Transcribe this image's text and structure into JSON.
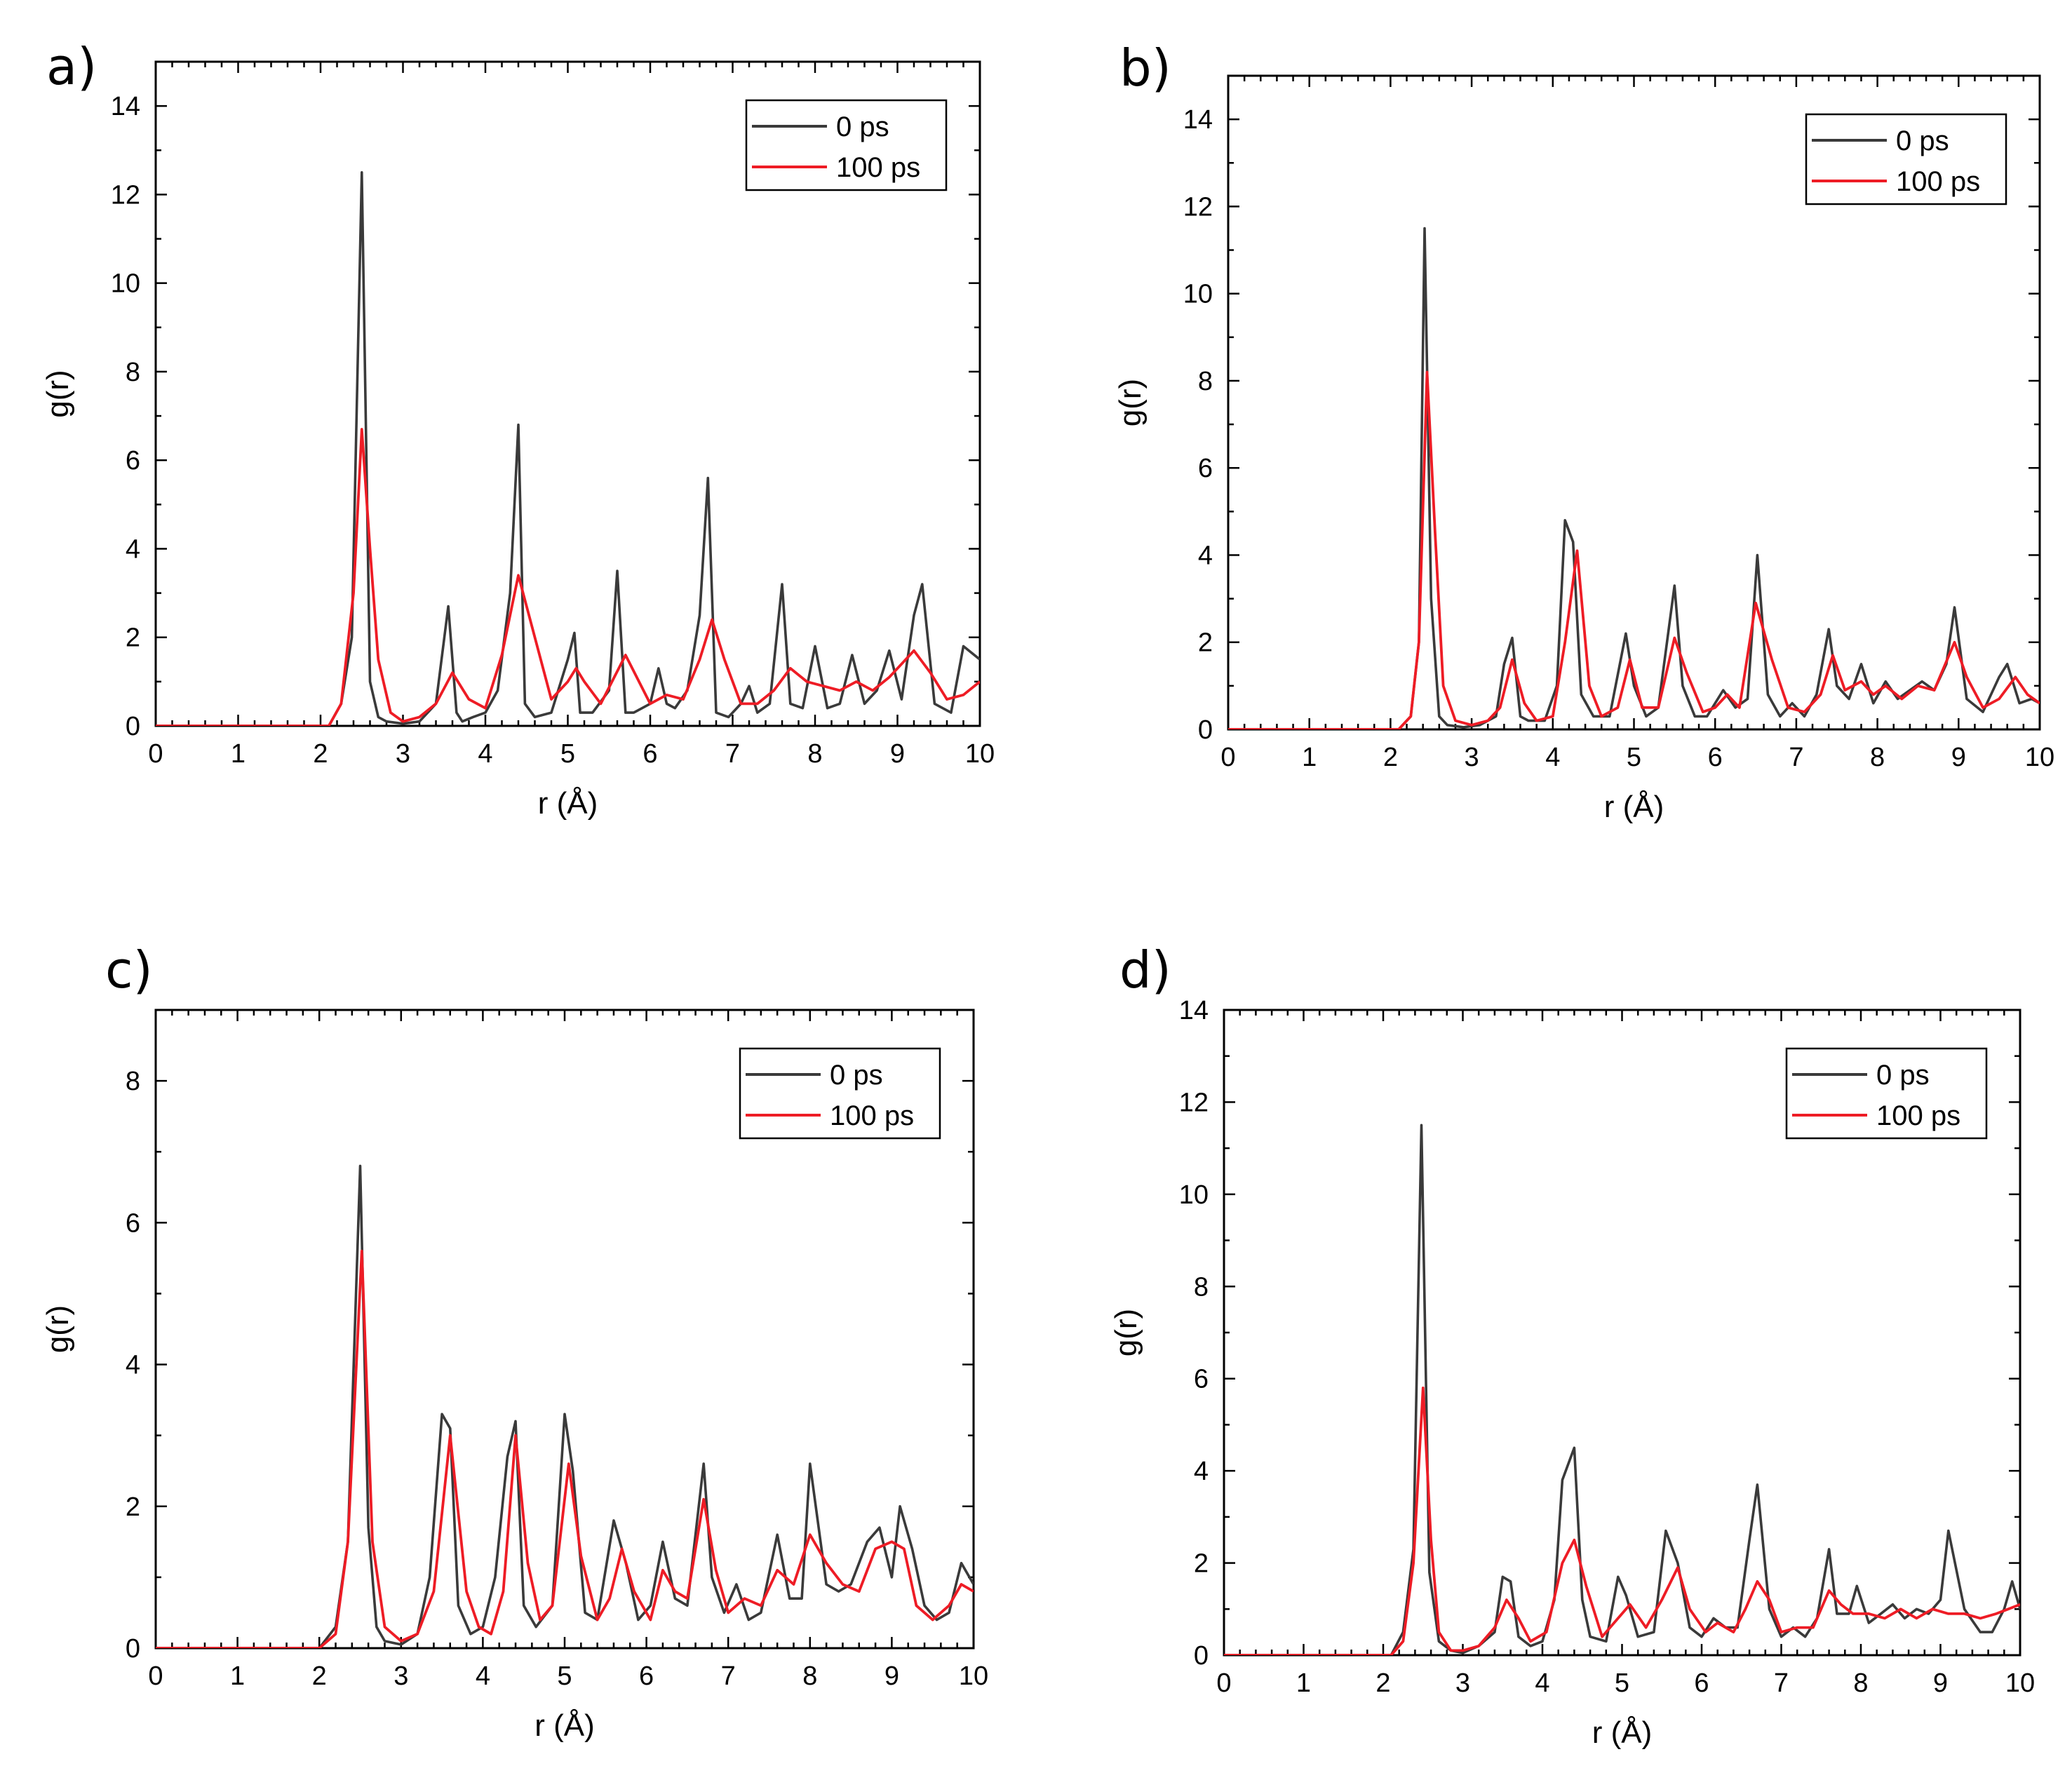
{
  "figure": {
    "colors": {
      "series_0ps": "#3a3a3a",
      "series_100ps": "#ee1c25",
      "axis": "#000000"
    }
  },
  "chart_data": [
    {
      "panel": "a)",
      "type": "line",
      "xlabel": "r (Å)",
      "ylabel": "g(r)",
      "xlim": [
        0,
        10
      ],
      "ylim": [
        0,
        15
      ],
      "xticks": [
        0,
        1,
        2,
        3,
        4,
        5,
        6,
        7,
        8,
        9,
        10
      ],
      "yticks": [
        0,
        2,
        4,
        6,
        8,
        10,
        12,
        14
      ],
      "legend": "top-right",
      "series": [
        {
          "name": "0 ps",
          "x": [
            0,
            2.1,
            2.25,
            2.38,
            2.5,
            2.6,
            2.7,
            2.8,
            3.0,
            3.2,
            3.4,
            3.55,
            3.65,
            3.72,
            3.85,
            4.0,
            4.15,
            4.3,
            4.4,
            4.48,
            4.6,
            4.8,
            5.0,
            5.08,
            5.15,
            5.3,
            5.5,
            5.6,
            5.7,
            5.8,
            6.0,
            6.1,
            6.2,
            6.3,
            6.45,
            6.6,
            6.7,
            6.8,
            6.95,
            7.1,
            7.2,
            7.3,
            7.45,
            7.6,
            7.7,
            7.85,
            8.0,
            8.15,
            8.3,
            8.45,
            8.6,
            8.75,
            8.9,
            9.05,
            9.2,
            9.3,
            9.45,
            9.65,
            9.8,
            10.0
          ],
          "y": [
            0,
            0,
            0.5,
            2.0,
            12.5,
            1.0,
            0.2,
            0.1,
            0.05,
            0.1,
            0.5,
            2.7,
            0.3,
            0.1,
            0.2,
            0.3,
            0.8,
            3.0,
            6.8,
            0.5,
            0.2,
            0.3,
            1.5,
            2.1,
            0.3,
            0.3,
            0.8,
            3.5,
            0.3,
            0.3,
            0.5,
            1.3,
            0.5,
            0.4,
            0.8,
            2.5,
            5.6,
            0.3,
            0.2,
            0.5,
            0.9,
            0.3,
            0.5,
            3.2,
            0.5,
            0.4,
            1.8,
            0.4,
            0.5,
            1.6,
            0.5,
            0.8,
            1.7,
            0.6,
            2.5,
            3.2,
            0.5,
            0.3,
            1.8,
            1.5
          ]
        },
        {
          "name": "100 ps",
          "x": [
            0,
            2.1,
            2.25,
            2.4,
            2.5,
            2.6,
            2.7,
            2.85,
            3.0,
            3.2,
            3.4,
            3.6,
            3.8,
            4.0,
            4.2,
            4.4,
            4.6,
            4.8,
            5.0,
            5.1,
            5.2,
            5.4,
            5.7,
            6.0,
            6.2,
            6.4,
            6.6,
            6.75,
            6.9,
            7.1,
            7.3,
            7.5,
            7.7,
            7.9,
            8.1,
            8.3,
            8.5,
            8.7,
            8.9,
            9.1,
            9.2,
            9.4,
            9.6,
            9.8,
            10.0
          ],
          "y": [
            0,
            0,
            0.5,
            3.0,
            6.7,
            4.0,
            1.5,
            0.3,
            0.1,
            0.2,
            0.5,
            1.2,
            0.6,
            0.4,
            1.6,
            3.4,
            2.0,
            0.6,
            1.0,
            1.3,
            1.0,
            0.5,
            1.6,
            0.5,
            0.7,
            0.6,
            1.5,
            2.4,
            1.5,
            0.5,
            0.5,
            0.8,
            1.3,
            1.0,
            0.9,
            0.8,
            1.0,
            0.8,
            1.1,
            1.5,
            1.7,
            1.2,
            0.6,
            0.7,
            1.0
          ]
        }
      ]
    },
    {
      "panel": "b)",
      "type": "line",
      "xlabel": "r (Å)",
      "ylabel": "g(r)",
      "xlim": [
        0,
        10
      ],
      "ylim": [
        0,
        15
      ],
      "xticks": [
        0,
        1,
        2,
        3,
        4,
        5,
        6,
        7,
        8,
        9,
        10
      ],
      "yticks": [
        0,
        2,
        4,
        6,
        8,
        10,
        12,
        14
      ],
      "legend": "top-right",
      "series": [
        {
          "name": "0 ps",
          "x": [
            0,
            2.1,
            2.25,
            2.35,
            2.42,
            2.5,
            2.6,
            2.7,
            2.9,
            3.1,
            3.3,
            3.4,
            3.5,
            3.6,
            3.7,
            3.9,
            4.05,
            4.15,
            4.25,
            4.35,
            4.5,
            4.7,
            4.9,
            5.0,
            5.15,
            5.3,
            5.5,
            5.6,
            5.75,
            5.9,
            6.1,
            6.25,
            6.4,
            6.52,
            6.65,
            6.8,
            6.95,
            7.1,
            7.25,
            7.4,
            7.5,
            7.65,
            7.8,
            7.95,
            8.1,
            8.25,
            8.4,
            8.55,
            8.7,
            8.85,
            8.95,
            9.1,
            9.3,
            9.5,
            9.6,
            9.75,
            9.9,
            10.0
          ],
          "y": [
            0,
            0,
            0.3,
            2.0,
            11.5,
            3.0,
            0.3,
            0.1,
            0.05,
            0.1,
            0.3,
            1.5,
            2.1,
            0.3,
            0.2,
            0.2,
            1.0,
            4.8,
            4.3,
            0.8,
            0.3,
            0.3,
            2.2,
            1.0,
            0.3,
            0.5,
            3.3,
            1.0,
            0.3,
            0.3,
            0.9,
            0.5,
            0.7,
            4.0,
            0.8,
            0.3,
            0.6,
            0.3,
            0.8,
            2.3,
            1.0,
            0.7,
            1.5,
            0.6,
            1.1,
            0.7,
            0.9,
            1.1,
            0.9,
            1.5,
            2.8,
            0.7,
            0.4,
            1.2,
            1.5,
            0.6,
            0.7,
            0.6
          ]
        },
        {
          "name": "100 ps",
          "x": [
            0,
            2.1,
            2.25,
            2.35,
            2.45,
            2.55,
            2.65,
            2.8,
            3.0,
            3.2,
            3.35,
            3.5,
            3.65,
            3.8,
            4.0,
            4.15,
            4.3,
            4.45,
            4.6,
            4.8,
            4.95,
            5.1,
            5.3,
            5.5,
            5.65,
            5.85,
            6.0,
            6.15,
            6.3,
            6.5,
            6.7,
            6.9,
            7.1,
            7.3,
            7.45,
            7.6,
            7.8,
            7.95,
            8.1,
            8.3,
            8.5,
            8.7,
            8.95,
            9.1,
            9.3,
            9.5,
            9.7,
            9.85,
            10.0
          ],
          "y": [
            0,
            0,
            0.3,
            2.0,
            8.2,
            4.5,
            1.0,
            0.2,
            0.1,
            0.2,
            0.5,
            1.6,
            0.6,
            0.2,
            0.3,
            2.0,
            4.1,
            1.0,
            0.3,
            0.5,
            1.6,
            0.5,
            0.5,
            2.1,
            1.3,
            0.4,
            0.5,
            0.8,
            0.5,
            2.9,
            1.6,
            0.5,
            0.4,
            0.8,
            1.7,
            0.9,
            1.1,
            0.8,
            1.0,
            0.7,
            1.0,
            0.9,
            2.0,
            1.2,
            0.5,
            0.7,
            1.2,
            0.8,
            0.6
          ]
        }
      ]
    },
    {
      "panel": "c)",
      "type": "line",
      "xlabel": "r (Å)",
      "ylabel": "g(r)",
      "xlim": [
        0,
        10
      ],
      "ylim": [
        0,
        9
      ],
      "xticks": [
        0,
        1,
        2,
        3,
        4,
        5,
        6,
        7,
        8,
        9,
        10
      ],
      "yticks": [
        0,
        2,
        4,
        6,
        8
      ],
      "legend": "top-right",
      "series": [
        {
          "name": "0 ps",
          "x": [
            0,
            2.0,
            2.2,
            2.35,
            2.5,
            2.6,
            2.7,
            2.8,
            3.0,
            3.2,
            3.35,
            3.5,
            3.6,
            3.7,
            3.85,
            4.0,
            4.15,
            4.3,
            4.4,
            4.5,
            4.65,
            4.85,
            5.0,
            5.1,
            5.25,
            5.4,
            5.6,
            5.75,
            5.9,
            6.05,
            6.2,
            6.35,
            6.5,
            6.7,
            6.8,
            6.95,
            7.1,
            7.25,
            7.4,
            7.6,
            7.75,
            7.9,
            8.0,
            8.2,
            8.35,
            8.5,
            8.7,
            8.85,
            9.0,
            9.1,
            9.25,
            9.4,
            9.55,
            9.7,
            9.85,
            10.0
          ],
          "y": [
            0,
            0,
            0.3,
            1.5,
            6.8,
            1.7,
            0.3,
            0.1,
            0.05,
            0.2,
            1.0,
            3.3,
            3.1,
            0.6,
            0.2,
            0.3,
            1.0,
            2.7,
            3.2,
            0.6,
            0.3,
            0.6,
            3.3,
            2.5,
            0.5,
            0.4,
            1.8,
            1.2,
            0.4,
            0.6,
            1.5,
            0.7,
            0.6,
            2.6,
            1.0,
            0.5,
            0.9,
            0.4,
            0.5,
            1.6,
            0.7,
            0.7,
            2.6,
            0.9,
            0.8,
            0.9,
            1.5,
            1.7,
            1.0,
            2.0,
            1.4,
            0.6,
            0.4,
            0.5,
            1.2,
            0.9
          ]
        },
        {
          "name": "100 ps",
          "x": [
            0,
            2.0,
            2.2,
            2.35,
            2.52,
            2.65,
            2.8,
            3.0,
            3.2,
            3.4,
            3.6,
            3.8,
            3.95,
            4.1,
            4.25,
            4.4,
            4.55,
            4.7,
            4.85,
            5.05,
            5.2,
            5.4,
            5.55,
            5.7,
            5.85,
            6.05,
            6.2,
            6.35,
            6.5,
            6.7,
            6.85,
            7.0,
            7.2,
            7.4,
            7.6,
            7.8,
            8.0,
            8.2,
            8.4,
            8.6,
            8.8,
            9.0,
            9.15,
            9.3,
            9.5,
            9.7,
            9.85,
            10.0
          ],
          "y": [
            0,
            0,
            0.2,
            1.5,
            5.6,
            1.5,
            0.3,
            0.1,
            0.2,
            0.8,
            3.0,
            0.8,
            0.3,
            0.2,
            0.8,
            3.0,
            1.2,
            0.4,
            0.6,
            2.6,
            1.3,
            0.4,
            0.7,
            1.4,
            0.8,
            0.4,
            1.1,
            0.8,
            0.7,
            2.1,
            1.1,
            0.5,
            0.7,
            0.6,
            1.1,
            0.9,
            1.6,
            1.2,
            0.9,
            0.8,
            1.4,
            1.5,
            1.4,
            0.6,
            0.4,
            0.6,
            0.9,
            0.8
          ]
        }
      ]
    },
    {
      "panel": "d)",
      "type": "line",
      "xlabel": "r (Å)",
      "ylabel": "g(r)",
      "xlim": [
        0,
        10
      ],
      "ylim": [
        0,
        14
      ],
      "xticks": [
        0,
        1,
        2,
        3,
        4,
        5,
        6,
        7,
        8,
        9,
        10
      ],
      "yticks": [
        0,
        2,
        4,
        6,
        8,
        10,
        12,
        14
      ],
      "legend": "top-right",
      "series": [
        {
          "name": "0 ps",
          "x": [
            0,
            2.1,
            2.25,
            2.38,
            2.48,
            2.58,
            2.7,
            2.85,
            3.0,
            3.2,
            3.4,
            3.5,
            3.6,
            3.7,
            3.85,
            4.0,
            4.15,
            4.25,
            4.4,
            4.5,
            4.6,
            4.8,
            4.95,
            5.05,
            5.2,
            5.4,
            5.55,
            5.7,
            5.85,
            6.0,
            6.15,
            6.3,
            6.45,
            6.6,
            6.7,
            6.85,
            7.0,
            7.15,
            7.3,
            7.45,
            7.6,
            7.7,
            7.85,
            7.95,
            8.1,
            8.25,
            8.4,
            8.55,
            8.7,
            8.85,
            9.0,
            9.1,
            9.3,
            9.5,
            9.65,
            9.8,
            9.9,
            10.0
          ],
          "y": [
            0,
            0,
            0.5,
            2.3,
            11.5,
            1.8,
            0.3,
            0.1,
            0.05,
            0.2,
            0.5,
            1.7,
            1.6,
            0.4,
            0.2,
            0.3,
            1.2,
            3.8,
            4.5,
            1.2,
            0.4,
            0.3,
            1.7,
            1.3,
            0.4,
            0.5,
            2.7,
            2.0,
            0.6,
            0.4,
            0.8,
            0.6,
            0.6,
            2.5,
            3.7,
            1.0,
            0.4,
            0.6,
            0.4,
            0.8,
            2.3,
            0.9,
            0.9,
            1.5,
            0.7,
            0.9,
            1.1,
            0.8,
            1.0,
            0.9,
            1.2,
            2.7,
            1.0,
            0.5,
            0.5,
            1.0,
            1.6,
            1.0
          ]
        },
        {
          "name": "100 ps",
          "x": [
            0,
            2.1,
            2.25,
            2.38,
            2.5,
            2.6,
            2.7,
            2.85,
            3.0,
            3.2,
            3.4,
            3.55,
            3.7,
            3.85,
            4.05,
            4.25,
            4.4,
            4.55,
            4.75,
            4.95,
            5.1,
            5.3,
            5.5,
            5.7,
            5.85,
            6.05,
            6.2,
            6.4,
            6.55,
            6.7,
            6.85,
            7.0,
            7.2,
            7.4,
            7.6,
            7.75,
            7.9,
            8.1,
            8.3,
            8.5,
            8.7,
            8.9,
            9.1,
            9.3,
            9.5,
            9.7,
            9.85,
            10.0
          ],
          "y": [
            0,
            0,
            0.3,
            2.0,
            5.8,
            2.5,
            0.5,
            0.1,
            0.1,
            0.2,
            0.6,
            1.2,
            0.8,
            0.3,
            0.5,
            2.0,
            2.5,
            1.5,
            0.4,
            0.8,
            1.1,
            0.6,
            1.2,
            1.9,
            1.0,
            0.5,
            0.7,
            0.5,
            1.0,
            1.6,
            1.2,
            0.5,
            0.6,
            0.6,
            1.4,
            1.1,
            0.9,
            0.9,
            0.8,
            1.0,
            0.8,
            1.0,
            0.9,
            0.9,
            0.8,
            0.9,
            1.0,
            1.1
          ]
        }
      ]
    }
  ]
}
